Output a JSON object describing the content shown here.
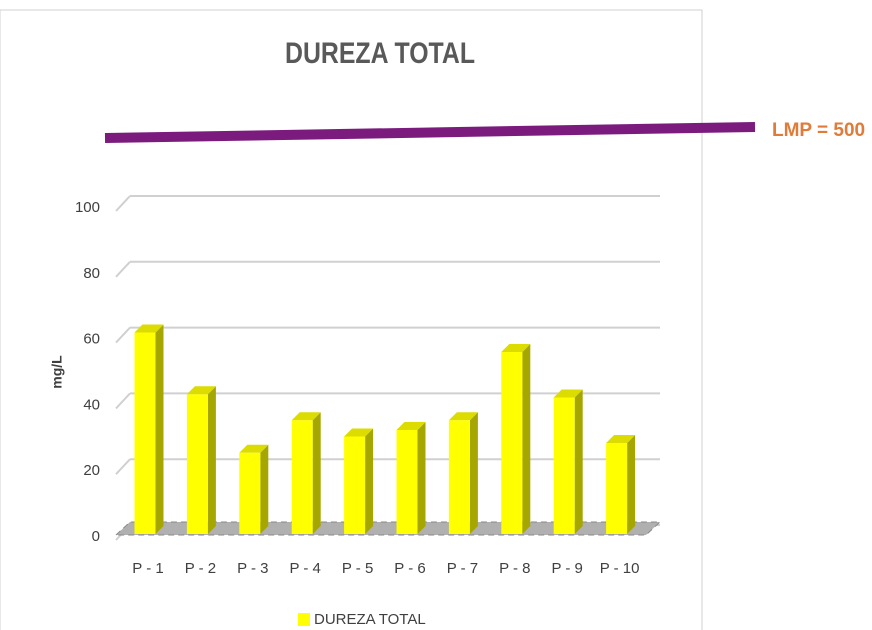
{
  "chart_data": {
    "type": "bar",
    "title": "DUREZA TOTAL",
    "y_label": "mg/L",
    "annotation": "LMP = 500",
    "categories": [
      "P - 1",
      "P - 2",
      "P - 3",
      "P - 4",
      "P - 5",
      "P - 6",
      "P - 7",
      "P - 8",
      "P - 9",
      "P - 10"
    ],
    "series": [
      {
        "name": "DUREZA TOTAL",
        "color": "#ffff00",
        "values": [
          62,
          43,
          25,
          35,
          30,
          32,
          35,
          56,
          42,
          28
        ]
      }
    ],
    "ylim": [
      0,
      100
    ],
    "yticks": [
      0,
      20,
      40,
      60,
      80,
      100
    ],
    "grid": true
  }
}
